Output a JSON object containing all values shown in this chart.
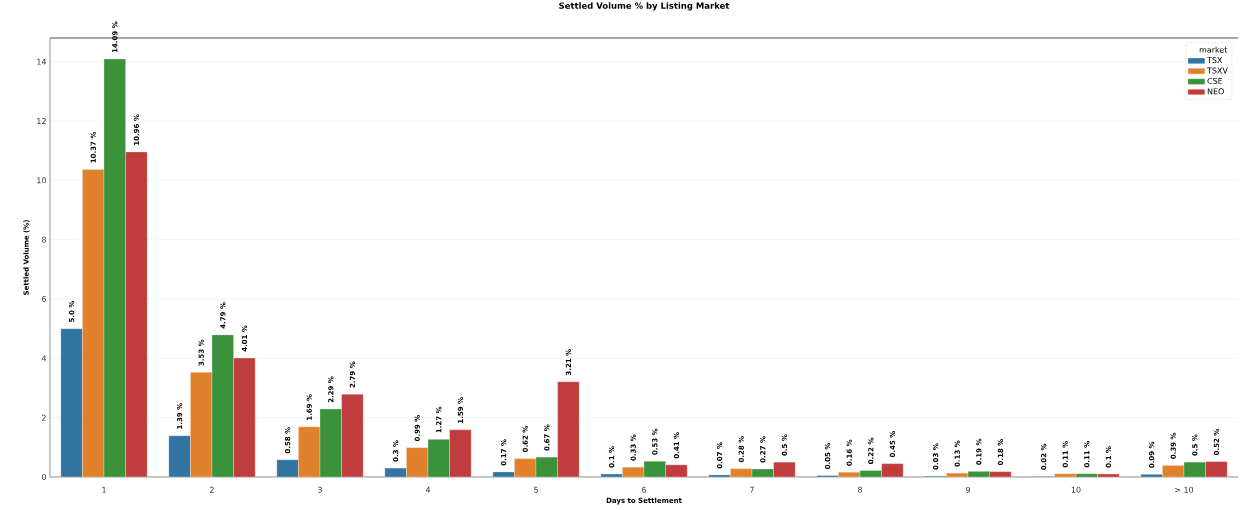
{
  "chart_data": {
    "type": "bar",
    "title": "Settled Volume % by Listing Market",
    "xlabel": "Days to Settlement",
    "ylabel": "Settled Volume (%)",
    "legend_title": "market",
    "categories": [
      "1",
      "2",
      "3",
      "4",
      "5",
      "6",
      "7",
      "8",
      "9",
      "10",
      "> 10"
    ],
    "series": [
      {
        "name": "TSX",
        "color": "#3274a1",
        "values": [
          5.0,
          1.39,
          0.58,
          0.3,
          0.17,
          0.1,
          0.07,
          0.05,
          0.03,
          0.02,
          0.09
        ],
        "value_labels": [
          "5.0 %",
          "1.39 %",
          "0.58 %",
          "0.3 %",
          "0.17 %",
          "0.1 %",
          "0.07 %",
          "0.05 %",
          "0.03 %",
          "0.02 %",
          "0.09 %"
        ]
      },
      {
        "name": "TSXV",
        "color": "#e1812c",
        "values": [
          10.37,
          3.53,
          1.69,
          0.99,
          0.62,
          0.33,
          0.28,
          0.16,
          0.13,
          0.11,
          0.39
        ],
        "value_labels": [
          "10.37 %",
          "3.53 %",
          "1.69 %",
          "0.99 %",
          "0.62 %",
          "0.33 %",
          "0.28 %",
          "0.16 %",
          "0.13 %",
          "0.11 %",
          "0.39 %"
        ]
      },
      {
        "name": "CSE",
        "color": "#3a923a",
        "values": [
          14.09,
          4.79,
          2.29,
          1.27,
          0.67,
          0.53,
          0.27,
          0.22,
          0.19,
          0.11,
          0.5
        ],
        "value_labels": [
          "14.09 %",
          "4.79 %",
          "2.29 %",
          "1.27 %",
          "0.67 %",
          "0.53 %",
          "0.27 %",
          "0.22 %",
          "0.19 %",
          "0.11 %",
          "0.5 %"
        ]
      },
      {
        "name": "NEO",
        "color": "#c03d3e",
        "values": [
          10.96,
          4.01,
          2.79,
          1.59,
          3.21,
          0.41,
          0.5,
          0.45,
          0.18,
          0.1,
          0.52
        ],
        "value_labels": [
          "10.96 %",
          "4.01 %",
          "2.79 %",
          "1.59 %",
          "3.21 %",
          "0.41 %",
          "0.5 %",
          "0.45 %",
          "0.18 %",
          "0.1 %",
          "0.52 %"
        ]
      }
    ],
    "ylim": [
      0,
      14.8
    ],
    "yticks": [
      0,
      2,
      4,
      6,
      8,
      10,
      12,
      14
    ],
    "grid": "y",
    "legend": "top right"
  }
}
